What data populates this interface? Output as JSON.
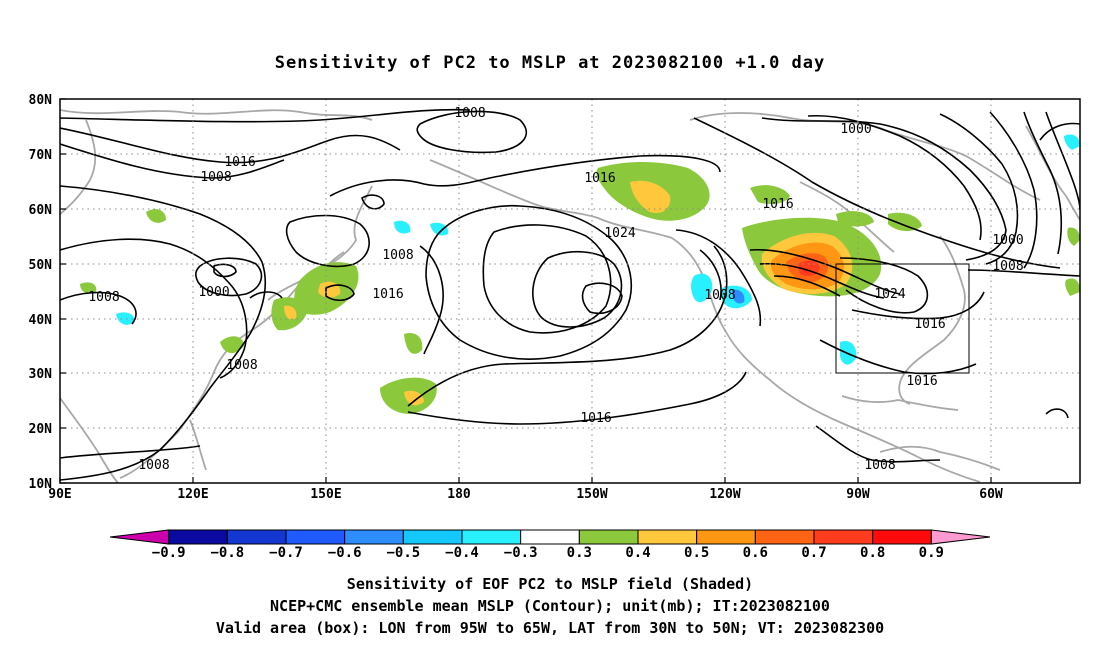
{
  "title": "Sensitivity of PC2 to MSLP at 2023082100 +1.0 day",
  "lat_ticks": [
    "80N",
    "70N",
    "60N",
    "50N",
    "40N",
    "30N",
    "20N",
    "10N"
  ],
  "lon_ticks": [
    "90E",
    "120E",
    "150E",
    "180",
    "150W",
    "120W",
    "90W",
    "60W"
  ],
  "contour_labels": [
    "1008",
    "1016",
    "1008",
    "1000",
    "1008",
    "1008",
    "1008",
    "1016",
    "1016",
    "1024",
    "1016",
    "1008",
    "1016",
    "1024",
    "1000",
    "1000",
    "1008",
    "1016",
    "1016",
    "1008"
  ],
  "colorbar": {
    "labels": [
      "−0.9",
      "−0.8",
      "−0.7",
      "−0.6",
      "−0.5",
      "−0.4",
      "−0.3",
      "0.3",
      "0.4",
      "0.5",
      "0.6",
      "0.7",
      "0.8",
      "0.9"
    ],
    "colors": [
      "#cc00aa",
      "#0a0aa0",
      "#1437d2",
      "#1e5aff",
      "#2d8cff",
      "#14c8ff",
      "#28f0ff",
      "#ffffff",
      "#8cc83c",
      "#ffc83c",
      "#ff9614",
      "#ff6414",
      "#ff3c1e",
      "#ff0a0a",
      "#ff9ad2"
    ]
  },
  "caption": [
    "Sensitivity of EOF PC2 to MSLP field (Shaded)",
    "NCEP+CMC ensemble mean MSLP (Contour); unit(mb); IT:2023082100",
    "Valid area (box): LON from 95W to 65W, LAT from 30N to 50N; VT: 2023082300"
  ]
}
